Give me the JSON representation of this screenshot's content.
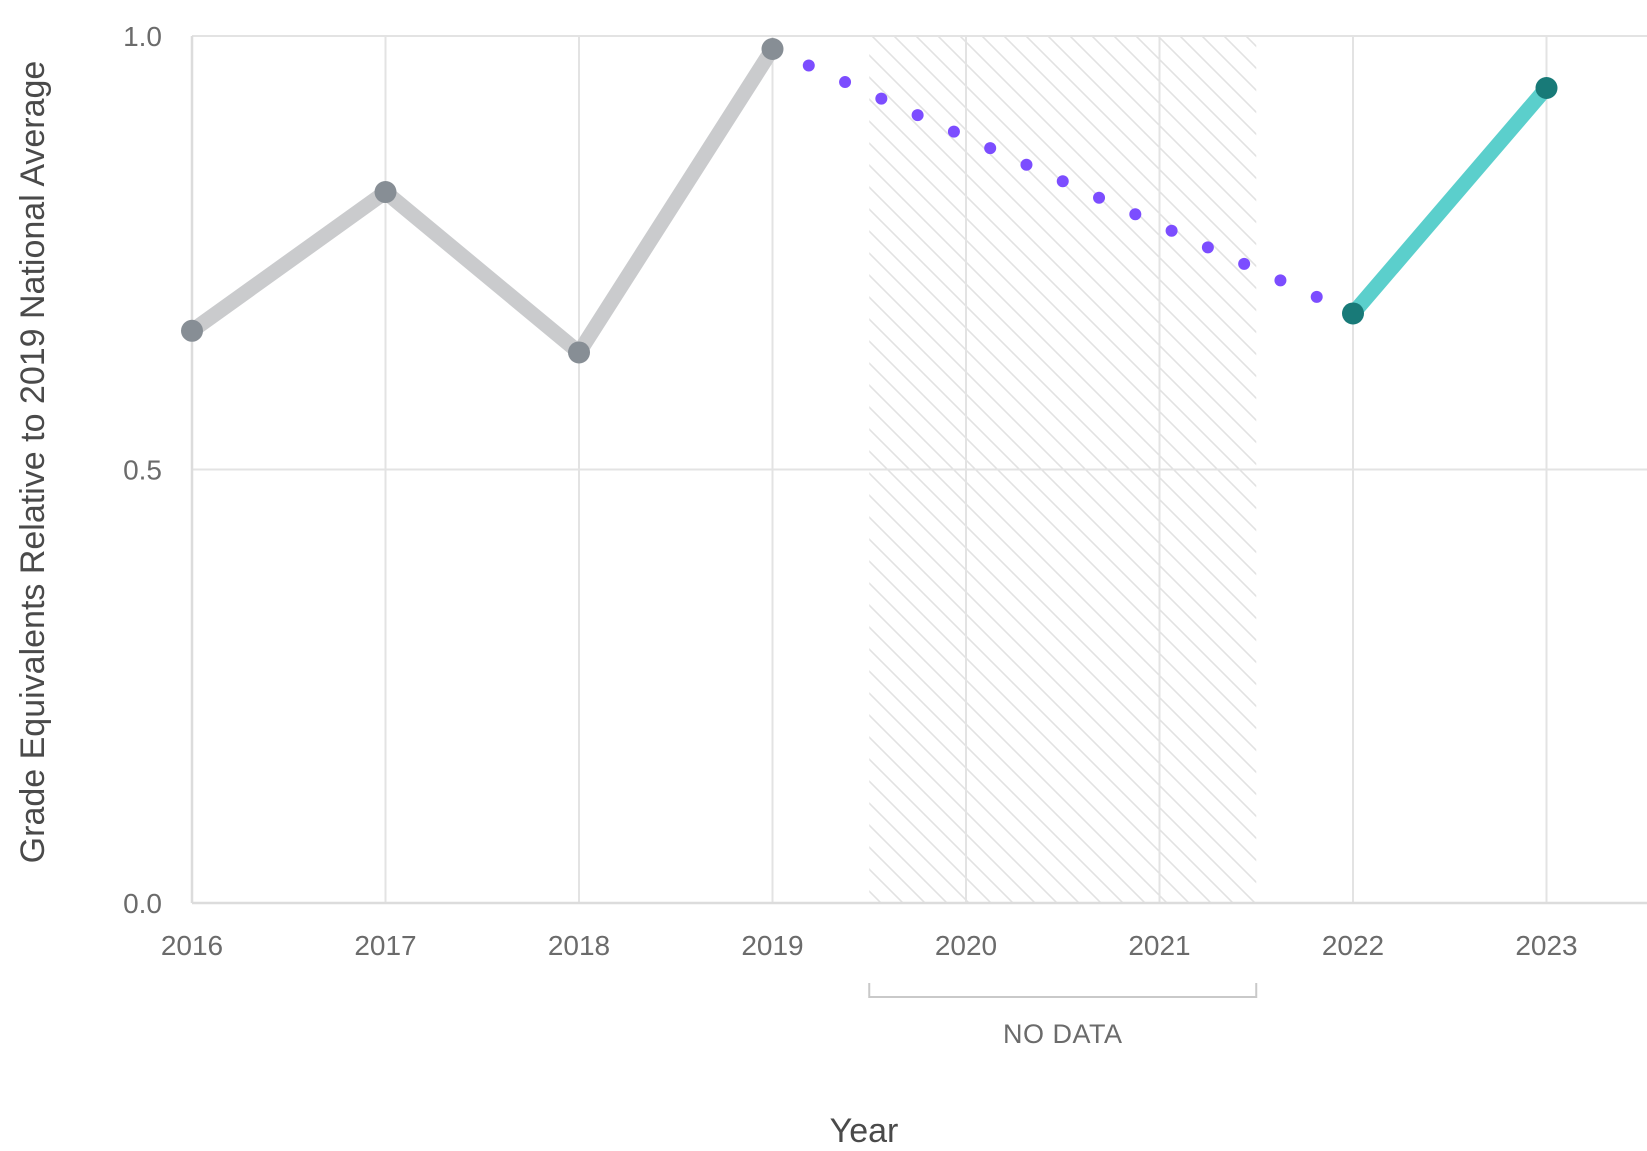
{
  "chart_data": {
    "type": "line",
    "title": "",
    "xlabel": "Year",
    "ylabel": "Grade Equivalents Relative to 2019 National Average",
    "x_ticks": [
      "2016",
      "2017",
      "2018",
      "2019",
      "2020",
      "2021",
      "2022",
      "2023"
    ],
    "y_ticks": [
      "0.0",
      "0.5",
      "1.0"
    ],
    "xlim": [
      2016,
      2023.5
    ],
    "ylim": [
      0,
      1.0
    ],
    "grid": true,
    "legend": "none",
    "no_data_band": {
      "label": "NO DATA",
      "x_start": 2019.5,
      "x_end": 2021.5
    },
    "series": [
      {
        "style": "solid-gray",
        "color": "#cacbcd",
        "marker_color": "#878e95",
        "x": [
          2016,
          2017,
          2018,
          2019
        ],
        "y": [
          0.66,
          0.82,
          0.635,
          0.985
        ]
      },
      {
        "style": "dotted-projection",
        "color": "#7c4dff",
        "x": [
          2019,
          2022
        ],
        "y": [
          0.985,
          0.68
        ]
      },
      {
        "style": "solid-teal",
        "color": "#5bcfcc",
        "marker_color": "#187a78",
        "x": [
          2022,
          2023
        ],
        "y": [
          0.68,
          0.94
        ]
      }
    ]
  }
}
